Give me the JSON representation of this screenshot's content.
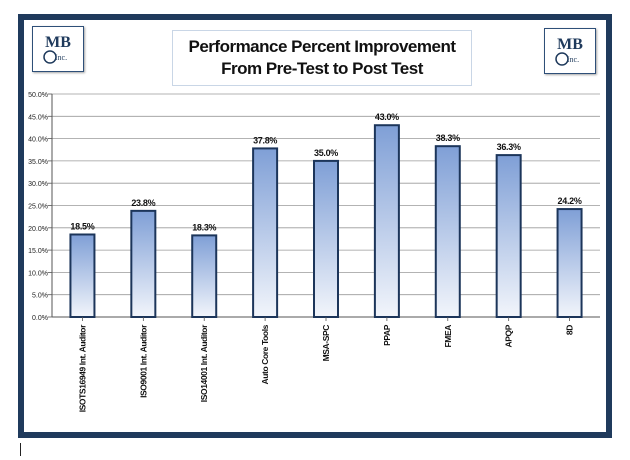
{
  "title_lines": [
    "Performance Percent Improvement",
    "From Pre-Test to Post Test"
  ],
  "logo": {
    "text_top": "MB",
    "text_bottom": "Inc."
  },
  "colors": {
    "frame": "#1f3a5c",
    "bar_top": "#7f9fd6",
    "bar_bottom": "#f2f5fb",
    "bar_stroke": "#1c355a"
  },
  "chart_data": {
    "type": "bar",
    "title": "Performance Percent Improvement From Pre-Test to Post Test",
    "categories": [
      "ISOTS16949 Int. Auditor",
      "ISO9001 Int. Auditor",
      "ISO14001 Int. Auditor",
      "Auto Core Tools",
      "MSA-SPC",
      "PPAP",
      "FMEA",
      "APQP",
      "8D"
    ],
    "values": [
      18.5,
      23.8,
      18.3,
      37.8,
      35.0,
      43.0,
      38.3,
      36.3,
      24.2
    ],
    "value_labels": [
      "18.5%",
      "23.8%",
      "18.3%",
      "37.8%",
      "35.0%",
      "43.0%",
      "38.3%",
      "36.3%",
      "24.2%"
    ],
    "ylim": [
      0,
      50
    ],
    "yticks": [
      0,
      5,
      10,
      15,
      20,
      25,
      30,
      35,
      40,
      45,
      50
    ],
    "ytick_labels": [
      "0.0%",
      "5.0%",
      "10.0%",
      "15.0%",
      "20.0%",
      "25.0%",
      "30.0%",
      "35.0%",
      "40.0%",
      "45.0%",
      "50.0%"
    ],
    "grid": true,
    "legend": "none",
    "xlabel": "",
    "ylabel": ""
  }
}
